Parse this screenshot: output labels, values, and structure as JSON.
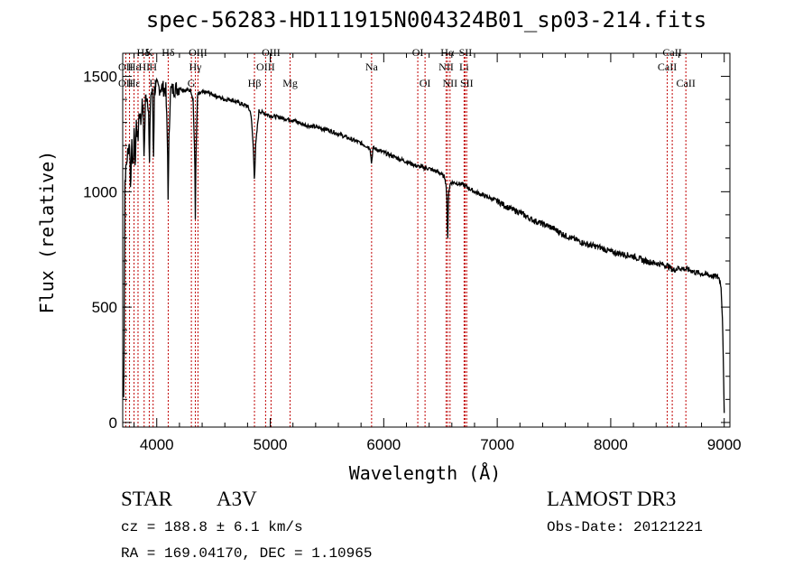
{
  "chart_data": {
    "type": "line",
    "title": "spec-56283-HD111915N004324B01_sp03-214.fits",
    "xlabel": "Wavelength (Å)",
    "ylabel": "Flux (relative)",
    "xlim": [
      3700,
      9050
    ],
    "ylim": [
      -20,
      1600
    ],
    "xticks": [
      4000,
      5000,
      6000,
      7000,
      8000,
      9000
    ],
    "yticks": [
      0,
      500,
      1000,
      1500
    ],
    "grid": false,
    "series": [
      {
        "name": "spectrum",
        "x": [
          3700,
          3705,
          3710,
          3720,
          3740,
          3760,
          3770,
          3780,
          3790,
          3800,
          3810,
          3820,
          3830,
          3835,
          3840,
          3850,
          3860,
          3870,
          3880,
          3889,
          3900,
          3910,
          3920,
          3930,
          3934,
          3945,
          3955,
          3965,
          3970,
          3980,
          3990,
          4000,
          4020,
          4050,
          4080,
          4095,
          4101,
          4107,
          4120,
          4150,
          4200,
          4250,
          4300,
          4320,
          4335,
          4340,
          4345,
          4360,
          4400,
          4450,
          4500,
          4550,
          4600,
          4650,
          4700,
          4750,
          4800,
          4830,
          4850,
          4861,
          4872,
          4900,
          4950,
          5000,
          5100,
          5200,
          5300,
          5400,
          5500,
          5600,
          5700,
          5800,
          5880,
          5893,
          5905,
          6000,
          6100,
          6200,
          6300,
          6400,
          6500,
          6540,
          6555,
          6563,
          6571,
          6590,
          6620,
          6700,
          6800,
          6900,
          7000,
          7100,
          7200,
          7300,
          7400,
          7500,
          7600,
          7700,
          7800,
          7900,
          8000,
          8100,
          8200,
          8300,
          8400,
          8500,
          8550,
          8600,
          8650,
          8700,
          8750,
          8800,
          8850,
          8900,
          8950,
          8970,
          8985,
          8995,
          9000
        ],
        "values": [
          120,
          130,
          140,
          1050,
          1150,
          1220,
          1000,
          1250,
          1050,
          1280,
          1100,
          1300,
          1250,
          1200,
          1320,
          1350,
          1300,
          1380,
          1350,
          1150,
          1400,
          1420,
          1400,
          1350,
          1050,
          1420,
          1430,
          1420,
          1100,
          1440,
          1450,
          1455,
          1450,
          1450,
          1440,
          1200,
          950,
          1200,
          1440,
          1445,
          1450,
          1440,
          1440,
          1400,
          1150,
          880,
          1150,
          1420,
          1430,
          1430,
          1420,
          1410,
          1400,
          1400,
          1390,
          1380,
          1370,
          1340,
          1200,
          1050,
          1200,
          1350,
          1340,
          1330,
          1320,
          1310,
          1290,
          1280,
          1270,
          1250,
          1230,
          1210,
          1190,
          1120,
          1190,
          1170,
          1150,
          1130,
          1110,
          1100,
          1080,
          1060,
          1000,
          760,
          1000,
          1040,
          1040,
          1030,
          1000,
          980,
          960,
          930,
          910,
          880,
          860,
          840,
          810,
          790,
          770,
          760,
          740,
          730,
          720,
          700,
          690,
          680,
          660,
          670,
          665,
          660,
          650,
          645,
          640,
          635,
          630,
          600,
          450,
          200,
          30
        ]
      }
    ]
  },
  "line_labels": [
    {
      "name": "Hδ",
      "wavelength": 3880,
      "row": 1
    },
    {
      "name": "K",
      "wavelength": 3934,
      "row": 1
    },
    {
      "name": "Hδ",
      "wavelength": 4101,
      "row": 1
    },
    {
      "name": "OIII",
      "wavelength": 4363,
      "row": 1
    },
    {
      "name": "OIII",
      "wavelength": 5007,
      "row": 1
    },
    {
      "name": "OI",
      "wavelength": 6300,
      "row": 1
    },
    {
      "name": "Hα",
      "wavelength": 6560,
      "row": 1
    },
    {
      "name": "SII",
      "wavelength": 6720,
      "row": 1
    },
    {
      "name": "CaII",
      "wavelength": 8542,
      "row": 1
    },
    {
      "name": "OII",
      "wavelength": 3727,
      "row": 2
    },
    {
      "name": "Hε",
      "wavelength": 3800,
      "row": 2
    },
    {
      "name": "HI",
      "wavelength": 3889,
      "row": 2
    },
    {
      "name": "H",
      "wavelength": 3968,
      "row": 2
    },
    {
      "name": "Hγ",
      "wavelength": 4340,
      "row": 2
    },
    {
      "name": "OIII",
      "wavelength": 4959,
      "row": 2
    },
    {
      "name": "Na",
      "wavelength": 5893,
      "row": 2
    },
    {
      "name": "NII",
      "wavelength": 6550,
      "row": 2
    },
    {
      "name": "Li",
      "wavelength": 6708,
      "row": 2
    },
    {
      "name": "CaII",
      "wavelength": 8498,
      "row": 2
    },
    {
      "name": "OII",
      "wavelength": 3727,
      "row": 3
    },
    {
      "name": "Hε",
      "wavelength": 3800,
      "row": 3
    },
    {
      "name": "H",
      "wavelength": 3968,
      "row": 3
    },
    {
      "name": "G",
      "wavelength": 4305,
      "row": 3
    },
    {
      "name": "Hβ",
      "wavelength": 4861,
      "row": 3
    },
    {
      "name": "Mg",
      "wavelength": 5175,
      "row": 3
    },
    {
      "name": "OI",
      "wavelength": 6364,
      "row": 3
    },
    {
      "name": "NII",
      "wavelength": 6584,
      "row": 3
    },
    {
      "name": "SII",
      "wavelength": 6731,
      "row": 3
    },
    {
      "name": "CaII",
      "wavelength": 8662,
      "row": 3
    }
  ],
  "line_markers": [
    3727,
    3760,
    3800,
    3835,
    3889,
    3934,
    3968,
    4101,
    4305,
    4340,
    4363,
    4861,
    4959,
    5007,
    5175,
    5893,
    6300,
    6364,
    6550,
    6563,
    6584,
    6708,
    6717,
    6731,
    8498,
    8542,
    8662
  ],
  "info": {
    "object_type": "STAR",
    "spectral_class": "A3V",
    "survey": "LAMOST DR3",
    "redshift": "cz = 188.8 ± 6.1 km/s",
    "obs_date": "Obs-Date: 20121221",
    "coords": "RA = 169.04170, DEC =    1.10965"
  },
  "colors": {
    "spectrum": "#000000",
    "marker": "#c00000",
    "axis": "#000000"
  }
}
